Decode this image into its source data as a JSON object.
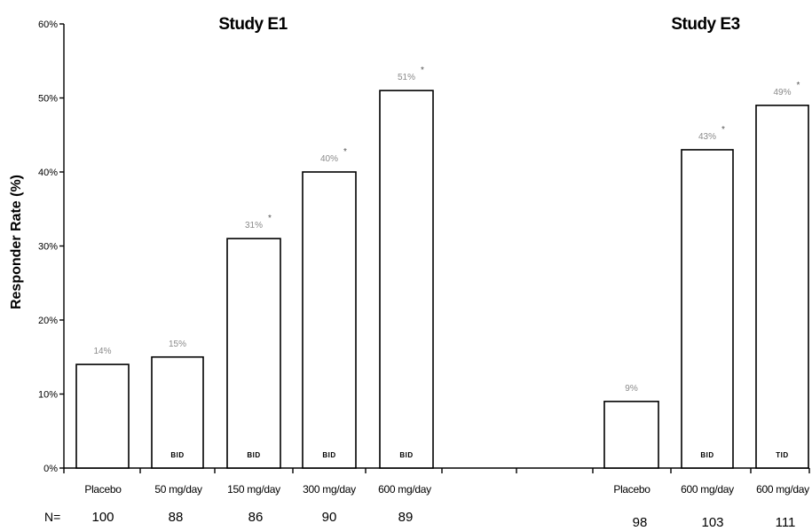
{
  "chart_data": {
    "type": "bar",
    "ylabel": "Responder Rate (%)",
    "ylim": [
      0,
      60
    ],
    "yticks": [
      "0%",
      "10%",
      "20%",
      "30%",
      "40%",
      "50%",
      "60%"
    ],
    "grid": false,
    "n_label": "N=",
    "studies": [
      {
        "title": "Study E1",
        "bars": [
          {
            "category": "Placebo",
            "value": 14,
            "label": "14%",
            "significant": false,
            "regimen": "",
            "n": "100"
          },
          {
            "category": "50 mg/day",
            "value": 15,
            "label": "15%",
            "significant": false,
            "regimen": "BID",
            "n": "88"
          },
          {
            "category": "150 mg/day",
            "value": 31,
            "label": "31%",
            "significant": true,
            "regimen": "BID",
            "n": "86"
          },
          {
            "category": "300 mg/day",
            "value": 40,
            "label": "40%",
            "significant": true,
            "regimen": "BID",
            "n": "90"
          },
          {
            "category": "600 mg/day",
            "value": 51,
            "label": "51%",
            "significant": true,
            "regimen": "BID",
            "n": "89"
          }
        ]
      },
      {
        "title": "Study E3",
        "bars": [
          {
            "category": "Placebo",
            "value": 9,
            "label": "9%",
            "significant": false,
            "regimen": "",
            "n": "98"
          },
          {
            "category": "600 mg/day",
            "value": 43,
            "label": "43%",
            "significant": true,
            "regimen": "BID",
            "n": "103"
          },
          {
            "category": "600 mg/day",
            "value": 49,
            "label": "49%",
            "significant": true,
            "regimen": "TID",
            "n": "111"
          }
        ]
      }
    ],
    "significance_marker": "*"
  }
}
